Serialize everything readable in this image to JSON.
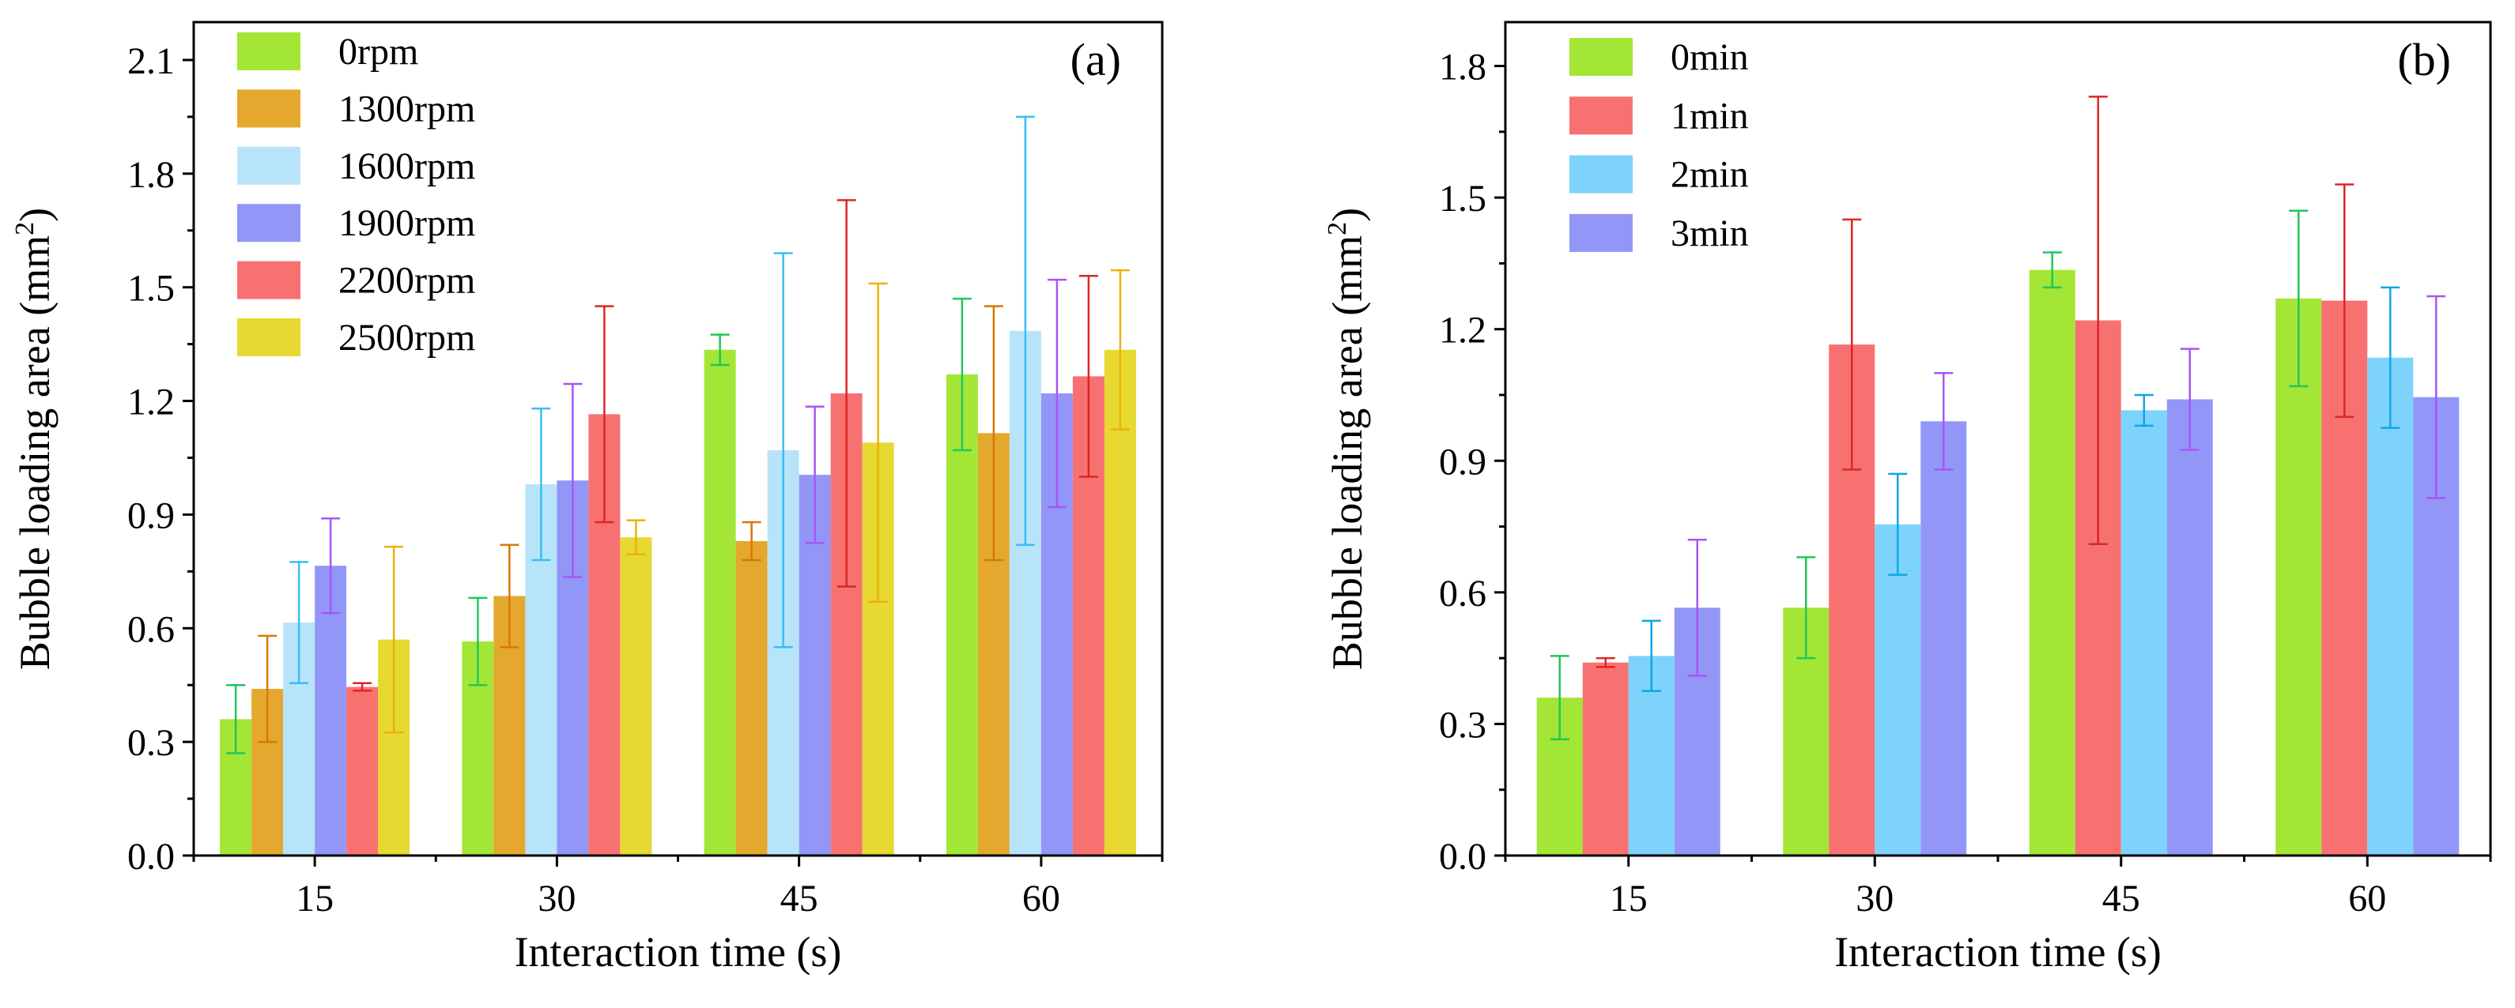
{
  "chart_data": [
    {
      "type": "bar",
      "panel_label": "(a)",
      "xlabel": "Interaction time (s)",
      "ylabel_main": "Bubble loading area (mm",
      "ylabel_sup": "2",
      "ylabel_end": ")",
      "ylim": [
        0,
        2.2
      ],
      "yticks": [
        "0.0",
        "0.3",
        "0.6",
        "0.9",
        "1.2",
        "1.5",
        "1.8",
        "2.1"
      ],
      "categories": [
        "15",
        "30",
        "45",
        "60"
      ],
      "legend_position": "top-left",
      "series": [
        {
          "name": "0rpm",
          "color": "#a3e635",
          "error_color": "#22c55e",
          "values": [
            0.36,
            0.565,
            1.335,
            1.27
          ],
          "errors": [
            0.09,
            0.115,
            0.04,
            0.2
          ]
        },
        {
          "name": "1300rpm",
          "color": "#e5a82e",
          "error_color": "#d97706",
          "values": [
            0.44,
            0.685,
            0.83,
            1.115
          ],
          "errors": [
            0.14,
            0.135,
            0.05,
            0.335
          ]
        },
        {
          "name": "1600rpm",
          "color": "#b8e4fa",
          "error_color": "#38bdf8",
          "values": [
            0.615,
            0.98,
            1.07,
            1.385
          ],
          "errors": [
            0.16,
            0.2,
            0.52,
            0.565
          ]
        },
        {
          "name": "1900rpm",
          "color": "#9297f7",
          "error_color": "#a855f7",
          "values": [
            0.765,
            0.99,
            1.005,
            1.22
          ],
          "errors": [
            0.125,
            0.255,
            0.18,
            0.3
          ]
        },
        {
          "name": "2200rpm",
          "color": "#f87171",
          "error_color": "#dc2626",
          "values": [
            0.445,
            1.165,
            1.22,
            1.265
          ],
          "errors": [
            0.01,
            0.285,
            0.51,
            0.265
          ]
        },
        {
          "name": "2500rpm",
          "color": "#e7d832",
          "error_color": "#eab308",
          "values": [
            0.57,
            0.84,
            1.09,
            1.335
          ],
          "errors": [
            0.245,
            0.045,
            0.42,
            0.21
          ]
        }
      ]
    },
    {
      "type": "bar",
      "panel_label": "(b)",
      "xlabel": "Interaction time (s)",
      "ylabel_main": "Bubble loading area (mm",
      "ylabel_sup": "2",
      "ylabel_end": ")",
      "ylim": [
        0,
        1.9
      ],
      "yticks": [
        "0.0",
        "0.3",
        "0.6",
        "0.9",
        "1.2",
        "1.5",
        "1.8"
      ],
      "categories": [
        "15",
        "30",
        "45",
        "60"
      ],
      "legend_position": "top-left",
      "series": [
        {
          "name": "0min",
          "color": "#a3e635",
          "error_color": "#22c55e",
          "values": [
            0.36,
            0.565,
            1.335,
            1.27
          ],
          "errors": [
            0.095,
            0.115,
            0.04,
            0.2
          ]
        },
        {
          "name": "1min",
          "color": "#f87171",
          "error_color": "#dc2626",
          "values": [
            0.44,
            1.165,
            1.22,
            1.265
          ],
          "errors": [
            0.01,
            0.285,
            0.51,
            0.265
          ]
        },
        {
          "name": "2min",
          "color": "#7dd3fc",
          "error_color": "#0ea5e9",
          "values": [
            0.455,
            0.755,
            1.015,
            1.135
          ],
          "errors": [
            0.08,
            0.115,
            0.035,
            0.16
          ]
        },
        {
          "name": "3min",
          "color": "#9297f7",
          "error_color": "#a855f7",
          "values": [
            0.565,
            0.99,
            1.04,
            1.045
          ],
          "errors": [
            0.155,
            0.11,
            0.115,
            0.23
          ]
        }
      ]
    }
  ]
}
